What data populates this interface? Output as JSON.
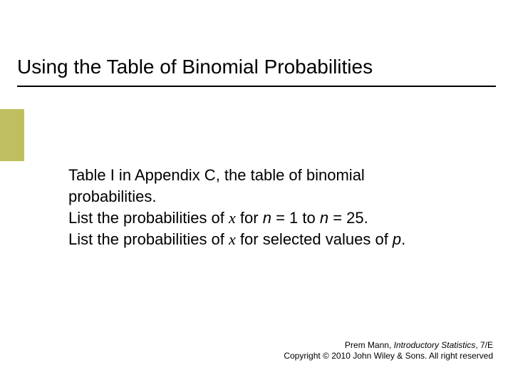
{
  "title": "Using the Table of Binomial Probabilities",
  "accent_color": "#bfbf5f",
  "body": {
    "line1a": "Table I in Appendix C, the table of binomial",
    "line1b": "probabilities.",
    "line2_pre": "List the probabilities of ",
    "line2_x": "x",
    "line2_mid": " for ",
    "line2_n1": "n",
    "line2_eq1": " = 1 to ",
    "line2_n2": "n",
    "line2_eq2": " = 25.",
    "line3_pre": "List the probabilities of ",
    "line3_x": "x",
    "line3_mid": " for selected values of ",
    "line3_p": "p",
    "line3_end": "."
  },
  "footer": {
    "author": "Prem Mann, ",
    "book": "Introductory Statistics",
    "edition": ", 7/E",
    "copyright": "Copyright © 2010 John Wiley & Sons. All right reserved"
  }
}
